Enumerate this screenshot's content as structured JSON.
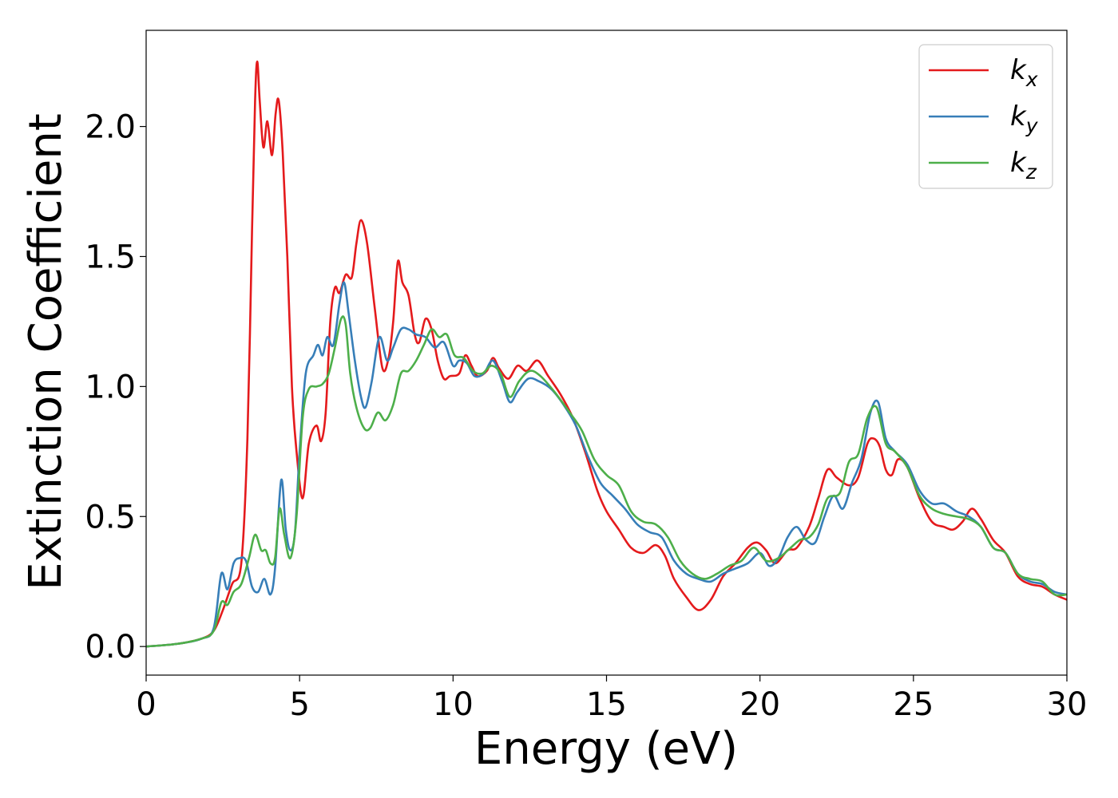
{
  "chart_data": {
    "type": "line",
    "title": "",
    "xlabel": "Energy (eV)",
    "ylabel": "Extinction Coefficient",
    "xlim": [
      0,
      30
    ],
    "ylim": [
      -0.11,
      2.37
    ],
    "xticks": [
      0,
      5,
      10,
      15,
      20,
      25,
      30
    ],
    "xtick_labels": [
      "0",
      "5",
      "10",
      "15",
      "20",
      "25",
      "30"
    ],
    "yticks": [
      0.0,
      0.5,
      1.0,
      1.5,
      2.0
    ],
    "ytick_labels": [
      "0.0",
      "0.5",
      "1.0",
      "1.5",
      "2.0"
    ],
    "grid": false,
    "legend_position": "top-right",
    "series": [
      {
        "name": "kx",
        "base": "k",
        "sub": "x",
        "color": "#e41a1c",
        "points": [
          [
            0,
            0
          ],
          [
            1,
            0.01
          ],
          [
            1.8,
            0.03
          ],
          [
            2.2,
            0.06
          ],
          [
            2.5,
            0.14
          ],
          [
            2.8,
            0.24
          ],
          [
            3.1,
            0.32
          ],
          [
            3.3,
            0.8
          ],
          [
            3.45,
            1.6
          ],
          [
            3.55,
            2.1
          ],
          [
            3.62,
            2.25
          ],
          [
            3.7,
            2.1
          ],
          [
            3.82,
            1.92
          ],
          [
            3.95,
            2.02
          ],
          [
            4.1,
            1.89
          ],
          [
            4.22,
            2.05
          ],
          [
            4.32,
            2.1
          ],
          [
            4.45,
            1.9
          ],
          [
            4.6,
            1.5
          ],
          [
            4.75,
            1.0
          ],
          [
            4.9,
            0.75
          ],
          [
            5.1,
            0.57
          ],
          [
            5.3,
            0.78
          ],
          [
            5.55,
            0.85
          ],
          [
            5.7,
            0.79
          ],
          [
            5.85,
            0.9
          ],
          [
            6.0,
            1.25
          ],
          [
            6.15,
            1.38
          ],
          [
            6.3,
            1.36
          ],
          [
            6.5,
            1.43
          ],
          [
            6.7,
            1.42
          ],
          [
            6.85,
            1.55
          ],
          [
            7.0,
            1.64
          ],
          [
            7.2,
            1.55
          ],
          [
            7.45,
            1.3
          ],
          [
            7.7,
            1.07
          ],
          [
            7.9,
            1.11
          ],
          [
            8.05,
            1.25
          ],
          [
            8.2,
            1.48
          ],
          [
            8.35,
            1.4
          ],
          [
            8.55,
            1.35
          ],
          [
            8.75,
            1.2
          ],
          [
            8.9,
            1.17
          ],
          [
            9.1,
            1.26
          ],
          [
            9.3,
            1.22
          ],
          [
            9.5,
            1.1
          ],
          [
            9.7,
            1.03
          ],
          [
            9.9,
            1.04
          ],
          [
            10.2,
            1.05
          ],
          [
            10.4,
            1.12
          ],
          [
            10.6,
            1.08
          ],
          [
            10.8,
            1.04
          ],
          [
            11.1,
            1.06
          ],
          [
            11.3,
            1.11
          ],
          [
            11.5,
            1.07
          ],
          [
            11.8,
            1.03
          ],
          [
            12.1,
            1.08
          ],
          [
            12.4,
            1.06
          ],
          [
            12.75,
            1.1
          ],
          [
            13.1,
            1.04
          ],
          [
            13.5,
            0.97
          ],
          [
            13.9,
            0.88
          ],
          [
            14.3,
            0.75
          ],
          [
            14.7,
            0.6
          ],
          [
            15.0,
            0.52
          ],
          [
            15.4,
            0.45
          ],
          [
            15.8,
            0.38
          ],
          [
            16.2,
            0.36
          ],
          [
            16.6,
            0.39
          ],
          [
            16.9,
            0.35
          ],
          [
            17.2,
            0.26
          ],
          [
            17.6,
            0.19
          ],
          [
            18.0,
            0.14
          ],
          [
            18.4,
            0.18
          ],
          [
            18.8,
            0.27
          ],
          [
            19.2,
            0.32
          ],
          [
            19.6,
            0.38
          ],
          [
            19.9,
            0.4
          ],
          [
            20.2,
            0.37
          ],
          [
            20.5,
            0.32
          ],
          [
            20.9,
            0.37
          ],
          [
            21.2,
            0.38
          ],
          [
            21.6,
            0.46
          ],
          [
            21.9,
            0.57
          ],
          [
            22.2,
            0.68
          ],
          [
            22.5,
            0.65
          ],
          [
            22.9,
            0.62
          ],
          [
            23.2,
            0.65
          ],
          [
            23.5,
            0.78
          ],
          [
            23.7,
            0.8
          ],
          [
            23.9,
            0.77
          ],
          [
            24.1,
            0.68
          ],
          [
            24.3,
            0.66
          ],
          [
            24.5,
            0.72
          ],
          [
            24.8,
            0.69
          ],
          [
            25.2,
            0.57
          ],
          [
            25.6,
            0.48
          ],
          [
            26.0,
            0.46
          ],
          [
            26.3,
            0.45
          ],
          [
            26.6,
            0.48
          ],
          [
            26.9,
            0.53
          ],
          [
            27.2,
            0.49
          ],
          [
            27.6,
            0.41
          ],
          [
            28.0,
            0.36
          ],
          [
            28.4,
            0.27
          ],
          [
            28.8,
            0.24
          ],
          [
            29.2,
            0.23
          ],
          [
            29.6,
            0.2
          ],
          [
            30,
            0.18
          ]
        ]
      },
      {
        "name": "ky",
        "base": "k",
        "sub": "y",
        "color": "#377eb8",
        "points": [
          [
            0,
            0
          ],
          [
            1,
            0.01
          ],
          [
            1.8,
            0.03
          ],
          [
            2.2,
            0.07
          ],
          [
            2.45,
            0.28
          ],
          [
            2.65,
            0.22
          ],
          [
            2.85,
            0.32
          ],
          [
            3.05,
            0.34
          ],
          [
            3.25,
            0.33
          ],
          [
            3.45,
            0.23
          ],
          [
            3.65,
            0.21
          ],
          [
            3.85,
            0.26
          ],
          [
            4.05,
            0.2
          ],
          [
            4.2,
            0.3
          ],
          [
            4.4,
            0.64
          ],
          [
            4.55,
            0.45
          ],
          [
            4.7,
            0.37
          ],
          [
            4.85,
            0.44
          ],
          [
            5.0,
            0.75
          ],
          [
            5.2,
            1.05
          ],
          [
            5.45,
            1.12
          ],
          [
            5.6,
            1.16
          ],
          [
            5.75,
            1.12
          ],
          [
            5.9,
            1.19
          ],
          [
            6.1,
            1.16
          ],
          [
            6.3,
            1.32
          ],
          [
            6.45,
            1.4
          ],
          [
            6.6,
            1.28
          ],
          [
            6.8,
            1.1
          ],
          [
            7.0,
            0.96
          ],
          [
            7.15,
            0.92
          ],
          [
            7.35,
            1.02
          ],
          [
            7.6,
            1.19
          ],
          [
            7.85,
            1.1
          ],
          [
            8.05,
            1.15
          ],
          [
            8.3,
            1.22
          ],
          [
            8.55,
            1.22
          ],
          [
            8.8,
            1.2
          ],
          [
            9.1,
            1.19
          ],
          [
            9.4,
            1.15
          ],
          [
            9.7,
            1.17
          ],
          [
            10.0,
            1.08
          ],
          [
            10.2,
            1.1
          ],
          [
            10.45,
            1.09
          ],
          [
            10.7,
            1.04
          ],
          [
            11.0,
            1.05
          ],
          [
            11.3,
            1.1
          ],
          [
            11.6,
            1.02
          ],
          [
            11.85,
            0.94
          ],
          [
            12.1,
            0.98
          ],
          [
            12.45,
            1.03
          ],
          [
            12.8,
            1.02
          ],
          [
            13.2,
            0.99
          ],
          [
            13.6,
            0.93
          ],
          [
            14.0,
            0.85
          ],
          [
            14.4,
            0.73
          ],
          [
            14.8,
            0.63
          ],
          [
            15.2,
            0.58
          ],
          [
            15.6,
            0.53
          ],
          [
            16.0,
            0.47
          ],
          [
            16.4,
            0.44
          ],
          [
            16.8,
            0.42
          ],
          [
            17.2,
            0.33
          ],
          [
            17.6,
            0.28
          ],
          [
            18.0,
            0.26
          ],
          [
            18.4,
            0.25
          ],
          [
            18.8,
            0.28
          ],
          [
            19.2,
            0.3
          ],
          [
            19.6,
            0.32
          ],
          [
            20.0,
            0.36
          ],
          [
            20.3,
            0.31
          ],
          [
            20.6,
            0.34
          ],
          [
            20.9,
            0.42
          ],
          [
            21.2,
            0.46
          ],
          [
            21.5,
            0.41
          ],
          [
            21.8,
            0.4
          ],
          [
            22.1,
            0.5
          ],
          [
            22.4,
            0.58
          ],
          [
            22.7,
            0.53
          ],
          [
            23.0,
            0.63
          ],
          [
            23.3,
            0.72
          ],
          [
            23.6,
            0.9
          ],
          [
            23.85,
            0.94
          ],
          [
            24.1,
            0.8
          ],
          [
            24.4,
            0.75
          ],
          [
            24.8,
            0.7
          ],
          [
            25.2,
            0.6
          ],
          [
            25.6,
            0.55
          ],
          [
            26.0,
            0.55
          ],
          [
            26.4,
            0.52
          ],
          [
            26.8,
            0.5
          ],
          [
            27.2,
            0.46
          ],
          [
            27.6,
            0.38
          ],
          [
            28.0,
            0.36
          ],
          [
            28.4,
            0.28
          ],
          [
            28.8,
            0.25
          ],
          [
            29.2,
            0.24
          ],
          [
            29.6,
            0.21
          ],
          [
            30,
            0.2
          ]
        ]
      },
      {
        "name": "kz",
        "base": "k",
        "sub": "z",
        "color": "#4daf4a",
        "points": [
          [
            0,
            0
          ],
          [
            1,
            0.01
          ],
          [
            1.8,
            0.03
          ],
          [
            2.2,
            0.06
          ],
          [
            2.45,
            0.17
          ],
          [
            2.65,
            0.16
          ],
          [
            2.85,
            0.21
          ],
          [
            3.1,
            0.24
          ],
          [
            3.35,
            0.34
          ],
          [
            3.55,
            0.43
          ],
          [
            3.75,
            0.37
          ],
          [
            3.9,
            0.37
          ],
          [
            4.05,
            0.32
          ],
          [
            4.2,
            0.34
          ],
          [
            4.35,
            0.53
          ],
          [
            4.5,
            0.43
          ],
          [
            4.7,
            0.34
          ],
          [
            4.9,
            0.5
          ],
          [
            5.1,
            0.88
          ],
          [
            5.3,
            0.99
          ],
          [
            5.55,
            1.0
          ],
          [
            5.75,
            1.01
          ],
          [
            5.95,
            1.05
          ],
          [
            6.15,
            1.15
          ],
          [
            6.35,
            1.26
          ],
          [
            6.5,
            1.24
          ],
          [
            6.65,
            1.05
          ],
          [
            6.85,
            0.92
          ],
          [
            7.1,
            0.84
          ],
          [
            7.3,
            0.84
          ],
          [
            7.55,
            0.9
          ],
          [
            7.8,
            0.87
          ],
          [
            8.05,
            0.93
          ],
          [
            8.3,
            1.05
          ],
          [
            8.55,
            1.06
          ],
          [
            8.8,
            1.1
          ],
          [
            9.05,
            1.16
          ],
          [
            9.3,
            1.22
          ],
          [
            9.55,
            1.19
          ],
          [
            9.8,
            1.2
          ],
          [
            10.05,
            1.12
          ],
          [
            10.35,
            1.11
          ],
          [
            10.65,
            1.06
          ],
          [
            10.95,
            1.05
          ],
          [
            11.25,
            1.08
          ],
          [
            11.55,
            1.05
          ],
          [
            11.85,
            0.96
          ],
          [
            12.15,
            1.02
          ],
          [
            12.5,
            1.06
          ],
          [
            12.85,
            1.04
          ],
          [
            13.3,
            0.98
          ],
          [
            13.8,
            0.9
          ],
          [
            14.2,
            0.83
          ],
          [
            14.6,
            0.72
          ],
          [
            15.0,
            0.66
          ],
          [
            15.4,
            0.62
          ],
          [
            15.8,
            0.52
          ],
          [
            16.2,
            0.48
          ],
          [
            16.6,
            0.47
          ],
          [
            17.0,
            0.42
          ],
          [
            17.4,
            0.33
          ],
          [
            17.8,
            0.28
          ],
          [
            18.2,
            0.26
          ],
          [
            18.6,
            0.28
          ],
          [
            19.0,
            0.31
          ],
          [
            19.4,
            0.33
          ],
          [
            19.8,
            0.38
          ],
          [
            20.2,
            0.33
          ],
          [
            20.6,
            0.34
          ],
          [
            21.0,
            0.38
          ],
          [
            21.3,
            0.41
          ],
          [
            21.6,
            0.42
          ],
          [
            21.9,
            0.47
          ],
          [
            22.2,
            0.57
          ],
          [
            22.6,
            0.59
          ],
          [
            22.9,
            0.71
          ],
          [
            23.2,
            0.74
          ],
          [
            23.5,
            0.88
          ],
          [
            23.8,
            0.92
          ],
          [
            24.1,
            0.78
          ],
          [
            24.4,
            0.75
          ],
          [
            24.8,
            0.69
          ],
          [
            25.2,
            0.58
          ],
          [
            25.6,
            0.53
          ],
          [
            26.0,
            0.51
          ],
          [
            26.4,
            0.5
          ],
          [
            26.8,
            0.49
          ],
          [
            27.2,
            0.46
          ],
          [
            27.6,
            0.38
          ],
          [
            28.0,
            0.36
          ],
          [
            28.4,
            0.28
          ],
          [
            28.8,
            0.26
          ],
          [
            29.2,
            0.25
          ],
          [
            29.6,
            0.2
          ],
          [
            30,
            0.2
          ]
        ]
      }
    ]
  }
}
